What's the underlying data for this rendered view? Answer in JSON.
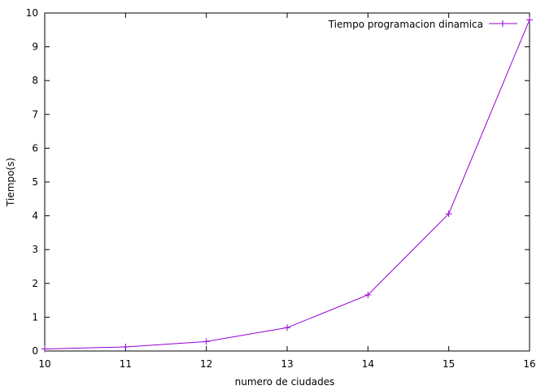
{
  "chart_data": {
    "type": "line",
    "title": "",
    "xlabel": "numero de ciudades",
    "ylabel": "Tiempo(s)",
    "xlim": [
      10,
      16
    ],
    "ylim": [
      0,
      10
    ],
    "x_ticks": [
      10,
      11,
      12,
      13,
      14,
      15,
      16
    ],
    "y_ticks": [
      0,
      1,
      2,
      3,
      4,
      5,
      6,
      7,
      8,
      9,
      10
    ],
    "grid": false,
    "legend_position": "top-right",
    "series": [
      {
        "name": "Tiempo programacion dinamica",
        "color": "#9400d3",
        "marker": "plus",
        "x": [
          10,
          11,
          12,
          13,
          14,
          15,
          16
        ],
        "y": [
          0.06,
          0.12,
          0.28,
          0.69,
          1.66,
          4.06,
          9.8
        ]
      }
    ]
  }
}
